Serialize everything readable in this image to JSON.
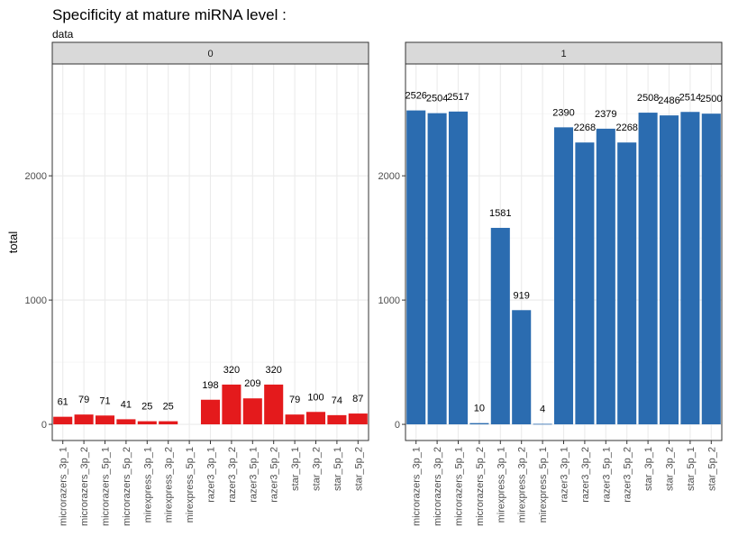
{
  "chart_data": {
    "type": "bar",
    "title": "Specificity at mature miRNA level :",
    "subtitle": "data",
    "xlabel": "",
    "ylabel": "total",
    "ylim": [
      0,
      2900
    ],
    "yticks": [
      0,
      1000,
      2000
    ],
    "grid": true,
    "categories": [
      "microrazers_3p_1",
      "microrazers_3p_2",
      "microrazers_5p_1",
      "microrazers_5p_2",
      "mirexpress_3p_1",
      "mirexpress_3p_2",
      "mirexpress_5p_1",
      "razer3_3p_1",
      "razer3_3p_2",
      "razer3_5p_1",
      "razer3_5p_2",
      "star_3p_1",
      "star_3p_2",
      "star_5p_1",
      "star_5p_2"
    ],
    "panels": [
      {
        "strip": "0",
        "color": "#E41A1C",
        "values": [
          61,
          79,
          71,
          41,
          25,
          25,
          null,
          198,
          320,
          209,
          320,
          79,
          100,
          74,
          87
        ],
        "labels": [
          "61",
          "79",
          "71",
          "41",
          "25",
          "25",
          "",
          "198",
          "320",
          "209",
          "320",
          "79",
          "100",
          "74",
          "87"
        ]
      },
      {
        "strip": "1",
        "color": "#2B6CB0",
        "values": [
          2526,
          2504,
          2517,
          10,
          1581,
          919,
          4,
          2390,
          2268,
          2379,
          2268,
          2508,
          2486,
          2514,
          2500
        ],
        "labels": [
          "2526",
          "2504",
          "2517",
          "10",
          "1581",
          "919",
          "4",
          "2390",
          "2268",
          "2379",
          "2268",
          "2508",
          "2486",
          "2514",
          "2500"
        ]
      }
    ]
  }
}
